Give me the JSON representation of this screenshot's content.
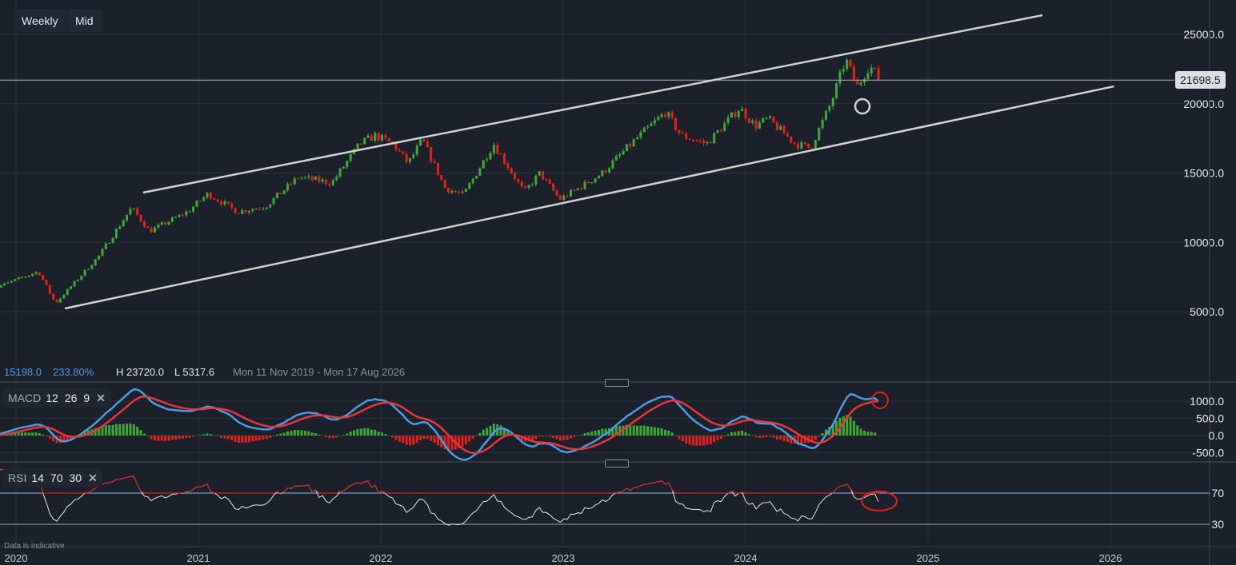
{
  "toolbar": {
    "interval": "Weekly",
    "price_type": "Mid"
  },
  "info": {
    "change": "15198.0",
    "change_pct": "233.80%",
    "high": "H 23720.0",
    "low": "L 5317.6",
    "range": "Mon 11 Nov 2019 - Mon 17 Aug 2026"
  },
  "current_price": "21698.5",
  "note": "Data is indicative",
  "colors": {
    "up": "#3fa83a",
    "down": "#e0221c",
    "macd": "#4a9be0",
    "signal": "#e8343b",
    "rsi": "#e6e6e6",
    "rsi_overbought": "#c8262a",
    "channel": "#d0d0d0",
    "background": "#1b202a"
  },
  "macd": {
    "name": "MACD",
    "fast": "12",
    "slow": "26",
    "signal": "9",
    "ticks": [
      "1000.0",
      "500.0",
      "0.0",
      "-500.0"
    ]
  },
  "rsi": {
    "name": "RSI",
    "period": "14",
    "upper": "70",
    "lower": "30",
    "ticks": [
      "70",
      "30"
    ]
  },
  "chart_data": {
    "type": "candlestick",
    "interval": "weekly",
    "y_ticks": [
      "25000.0",
      "20000.0",
      "15000.0",
      "10000.0",
      "5000.0"
    ],
    "x_ticks": [
      "2020",
      "2021",
      "2022",
      "2023",
      "2024",
      "2025",
      "2026"
    ],
    "ylim": [
      2500,
      27500
    ],
    "close_path": [
      [
        "2019-11-11",
        6600
      ],
      [
        "2020-02-15",
        7900
      ],
      [
        "2020-03-20",
        5600
      ],
      [
        "2020-06-15",
        9000
      ],
      [
        "2020-08-20",
        12500
      ],
      [
        "2020-09-25",
        10800
      ],
      [
        "2020-12-10",
        12200
      ],
      [
        "2021-01-20",
        13500
      ],
      [
        "2021-03-20",
        12200
      ],
      [
        "2021-05-15",
        12600
      ],
      [
        "2021-07-20",
        14700
      ],
      [
        "2021-09-25",
        14300
      ],
      [
        "2021-11-20",
        17100
      ],
      [
        "2021-12-20",
        17700
      ],
      [
        "2022-01-25",
        17100
      ],
      [
        "2022-02-25",
        15700
      ],
      [
        "2022-03-25",
        17400
      ],
      [
        "2022-05-10",
        13900
      ],
      [
        "2022-06-15",
        13400
      ],
      [
        "2022-08-15",
        17100
      ],
      [
        "2022-10-15",
        13600
      ],
      [
        "2022-11-15",
        15000
      ],
      [
        "2022-12-25",
        13100
      ],
      [
        "2023-02-01",
        13900
      ],
      [
        "2023-03-20",
        15000
      ],
      [
        "2023-05-25",
        17400
      ],
      [
        "2023-07-25",
        19400
      ],
      [
        "2023-08-25",
        17700
      ],
      [
        "2023-10-15",
        17100
      ],
      [
        "2023-12-20",
        19700
      ],
      [
        "2024-01-20",
        18400
      ],
      [
        "2024-02-15",
        18900
      ],
      [
        "2024-04-10",
        17100
      ],
      [
        "2024-05-10",
        16800
      ],
      [
        "2024-06-20",
        20000
      ],
      [
        "2024-07-20",
        23200
      ],
      [
        "2024-08-12",
        21200
      ],
      [
        "2024-09-05",
        22750
      ],
      [
        "2024-09-30",
        21698.5
      ]
    ],
    "high": 23720.0,
    "low": 5317.6,
    "last": 21698.5,
    "channel": {
      "upper": [
        [
          "2020-09-12",
          13590
        ],
        [
          "2025-08-18",
          26380
        ]
      ],
      "lower": [
        [
          "2020-04-08",
          5230
        ],
        [
          "2026-01-08",
          21250
        ]
      ]
    },
    "annotations": [
      "circle-price-wick-2024-08",
      "circle-macd-crossover",
      "circle-rsi"
    ]
  }
}
